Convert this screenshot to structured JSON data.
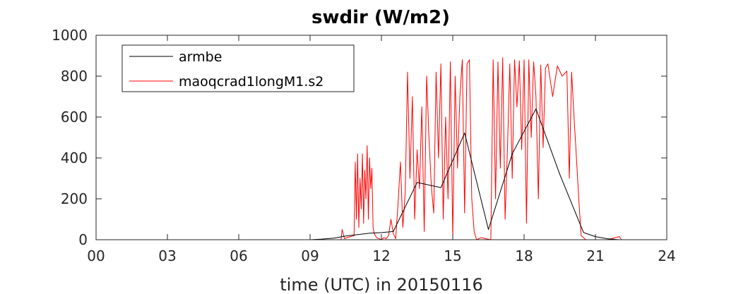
{
  "chart_data": {
    "type": "line",
    "title": "swdir  (W/m2)",
    "xlabel": "time (UTC) in 20150116",
    "ylabel": "",
    "xlim": [
      0,
      24
    ],
    "ylim": [
      0,
      1000
    ],
    "x_ticks": [
      0,
      3,
      6,
      9,
      12,
      15,
      18,
      21,
      24
    ],
    "x_tick_labels": [
      "00",
      "03",
      "06",
      "09",
      "12",
      "15",
      "18",
      "21",
      "24"
    ],
    "y_ticks": [
      0,
      200,
      400,
      600,
      800,
      1000
    ],
    "y_tick_labels": [
      "0",
      "200",
      "400",
      "600",
      "800",
      "1000"
    ],
    "grid": false,
    "legend_position": "top-left",
    "series": [
      {
        "name": "armbe",
        "color": "#000000",
        "x": [
          0,
          1,
          2,
          3,
          4,
          5,
          6,
          7,
          8,
          9,
          9.5,
          10,
          10.5,
          11,
          11.5,
          12,
          12.5,
          13.5,
          14.5,
          15.5,
          16.5,
          17.5,
          18.5,
          19.5,
          20.5,
          21,
          21.5,
          22,
          23,
          24
        ],
        "y": [
          0,
          0,
          0,
          0,
          0,
          0,
          0,
          0,
          0,
          0,
          3,
          8,
          18,
          25,
          32,
          35,
          40,
          280,
          255,
          522,
          50,
          420,
          640,
          320,
          35,
          15,
          5,
          0,
          0,
          0
        ]
      },
      {
        "name": "maoqcrad1longM1.s2",
        "color": "#ff0000",
        "x": [
          0,
          10.3,
          10.35,
          10.45,
          10.55,
          10.7,
          10.85,
          10.9,
          10.95,
          11.0,
          11.05,
          11.1,
          11.15,
          11.2,
          11.25,
          11.3,
          11.35,
          11.4,
          11.45,
          11.5,
          11.55,
          11.6,
          11.65,
          11.7,
          11.75,
          11.8,
          11.9,
          12.0,
          12.1,
          12.2,
          12.3,
          12.4,
          12.5,
          12.6,
          12.7,
          12.8,
          12.9,
          13.0,
          13.1,
          13.2,
          13.3,
          13.4,
          13.5,
          13.6,
          13.7,
          13.8,
          13.9,
          14.0,
          14.1,
          14.2,
          14.3,
          14.4,
          14.5,
          14.6,
          14.7,
          14.8,
          14.9,
          15.0,
          15.1,
          15.2,
          15.3,
          15.4,
          15.5,
          15.6,
          15.7,
          15.8,
          15.9,
          16.0,
          16.2,
          16.4,
          16.6,
          16.7,
          16.8,
          16.9,
          17.0,
          17.1,
          17.2,
          17.3,
          17.4,
          17.5,
          17.6,
          17.7,
          17.8,
          17.9,
          18.0,
          18.1,
          18.2,
          18.3,
          18.4,
          18.5,
          18.6,
          18.7,
          18.8,
          18.9,
          19.0,
          19.2,
          19.4,
          19.6,
          19.8,
          19.9,
          20.0,
          20.1,
          20.2,
          20.3,
          20.4,
          20.5,
          20.6,
          20.8,
          21.0,
          21.5,
          22.0,
          22.1,
          24.0
        ],
        "y": [
          0,
          0,
          50,
          5,
          10,
          15,
          20,
          380,
          100,
          420,
          60,
          300,
          150,
          420,
          80,
          340,
          200,
          460,
          100,
          400,
          250,
          350,
          60,
          30,
          20,
          10,
          5,
          0,
          10,
          5,
          20,
          100,
          30,
          5,
          180,
          380,
          60,
          230,
          820,
          300,
          700,
          100,
          440,
          250,
          650,
          40,
          800,
          500,
          260,
          130,
          820,
          400,
          860,
          100,
          600,
          200,
          870,
          10,
          800,
          350,
          700,
          880,
          130,
          860,
          880,
          200,
          40,
          0,
          10,
          5,
          0,
          880,
          200,
          870,
          350,
          890,
          100,
          440,
          860,
          300,
          880,
          650,
          875,
          440,
          880,
          80,
          880,
          500,
          870,
          700,
          200,
          855,
          450,
          840,
          860,
          700,
          850,
          800,
          825,
          300,
          820,
          600,
          400,
          200,
          20,
          10,
          0,
          0,
          0,
          0,
          15,
          0,
          0
        ]
      }
    ]
  }
}
